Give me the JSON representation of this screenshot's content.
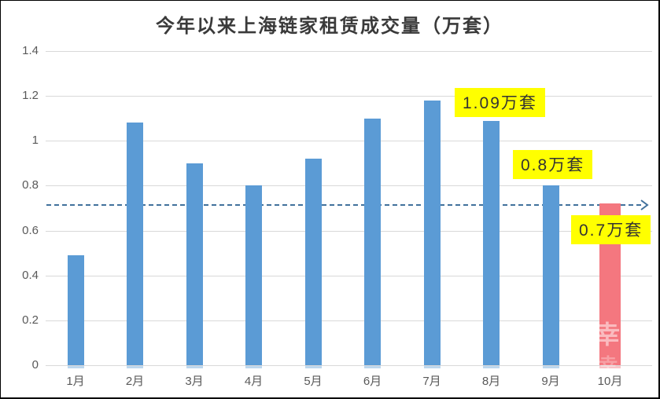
{
  "page": {
    "border_color": "#000000",
    "background": "#ffffff"
  },
  "chart_data": {
    "type": "bar",
    "title": "今年以来上海链家租赁成交量（万套）",
    "categories": [
      "1月",
      "2月",
      "3月",
      "4月",
      "5月",
      "6月",
      "7月",
      "8月",
      "9月",
      "10月"
    ],
    "values": [
      0.49,
      1.08,
      0.9,
      0.8,
      0.92,
      1.1,
      1.18,
      1.09,
      0.8,
      0.72
    ],
    "ylim": [
      0,
      1.4
    ],
    "ytick_labels": [
      "1.4",
      "1.2",
      "1",
      "0.8",
      "0.6",
      "0.4",
      "0.2",
      "0"
    ],
    "grid": true,
    "legend": "none",
    "colors": {
      "bar_default": "#5b9bd5",
      "bar_highlight": "#f4777f",
      "axis_tick_default": "#bdd7ee",
      "axis_tick_highlight": "#f9c3c7",
      "gridline": "#d9d9d9",
      "axis_text": "#595959",
      "title_text": "#3a3a3a",
      "reference_line": "#41719c",
      "annotation_bg": "#ffff00",
      "annotation_text": "#333333"
    },
    "highlight_index": 9,
    "reference_line": {
      "value": 0.715,
      "style": "dashed",
      "arrow": "right"
    },
    "annotations": [
      {
        "text": "1.09万套",
        "target_category": "8月"
      },
      {
        "text": "0.8万套",
        "target_category": "9月"
      },
      {
        "text": "0.7万套",
        "target_category": "10月"
      }
    ],
    "watermark": "幸"
  }
}
